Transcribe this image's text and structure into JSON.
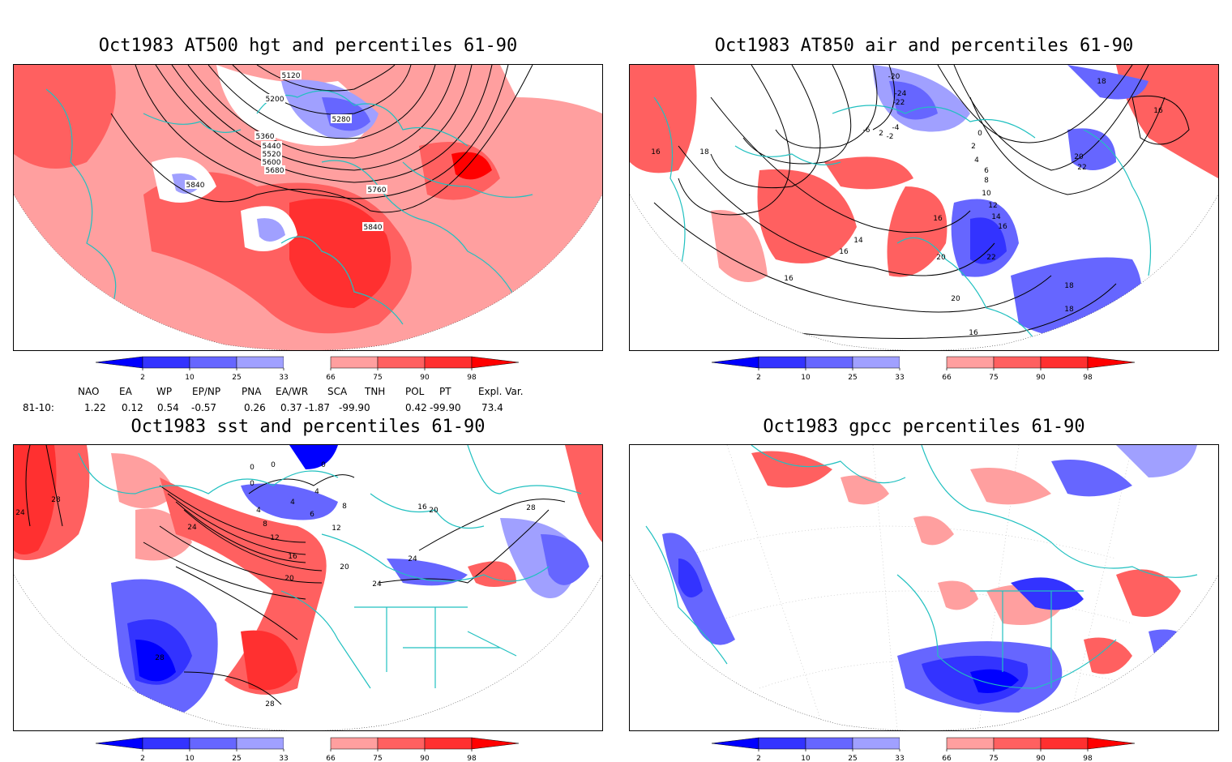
{
  "panels": [
    {
      "title": "Oct1983 AT500 hgt and percentiles 61-90",
      "contour_labels": [
        "5120",
        "5200",
        "5280",
        "5360",
        "5440",
        "5520",
        "5600",
        "5680",
        "5760",
        "5840",
        "5840"
      ]
    },
    {
      "title": "Oct1983 AT850 air and percentiles 61-90",
      "contour_labels": [
        "-20",
        "-24",
        "-22",
        "-6",
        "-4",
        "-2",
        "2",
        "0",
        "2",
        "4",
        "6",
        "8",
        "10",
        "12",
        "14",
        "16",
        "16",
        "18",
        "18",
        "20",
        "22",
        "16",
        "16",
        "14",
        "16",
        "20",
        "22",
        "20",
        "18",
        "18",
        "16",
        "16"
      ]
    },
    {
      "title": "Oct1983 sst and percentiles 61-90",
      "contour_labels": [
        "24",
        "28",
        "24",
        "0",
        "0",
        "0",
        "0",
        "4",
        "4",
        "4",
        "6",
        "8",
        "8",
        "12",
        "12",
        "16",
        "16",
        "20",
        "20",
        "20",
        "24",
        "24",
        "28",
        "28",
        "28"
      ]
    },
    {
      "title": "Oct1983 gpcc percentiles 61-90",
      "contour_labels": []
    }
  ],
  "colorbar": {
    "ticks": [
      "2",
      "10",
      "25",
      "33",
      "66",
      "75",
      "90",
      "98"
    ],
    "colors": [
      "#0000ff",
      "#3333ff",
      "#6666ff",
      "#a0a0ff",
      "#ff9f9f",
      "#ff6060",
      "#ff3030",
      "#ff0000"
    ]
  },
  "indices": {
    "headers": [
      "NAO",
      "EA",
      "WP",
      "EP/NP",
      "PNA",
      "EA/WR",
      "SCA",
      "TNH",
      "POL",
      "PT",
      "Expl. Var."
    ],
    "row_label": "81-10:",
    "values": [
      "1.22",
      "0.12",
      "0.54",
      "-0.57",
      "0.26",
      "0.37",
      "-1.87",
      "-99.90",
      "0.42",
      "-99.90",
      "73.4"
    ]
  }
}
